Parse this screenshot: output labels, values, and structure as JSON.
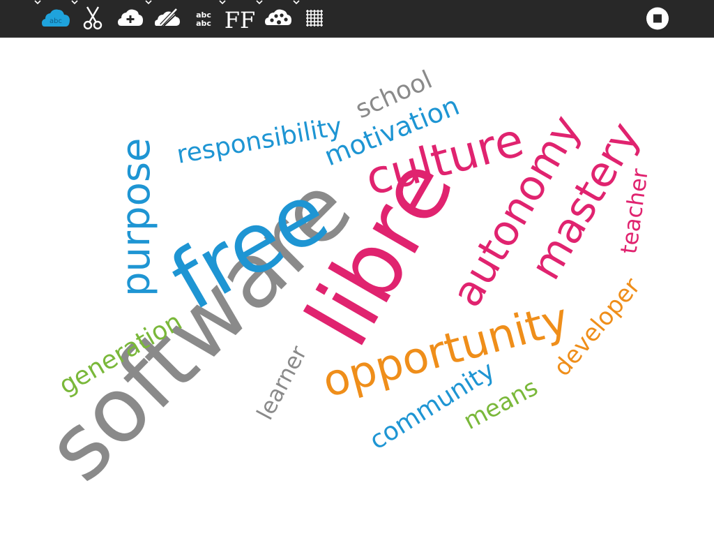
{
  "toolbar": {
    "tools": [
      {
        "name": "wordcloud-cloud-icon",
        "label": "abc",
        "color": "#1fa3dc",
        "active": true,
        "caret": true
      },
      {
        "name": "scissors-icon",
        "caret": true
      },
      {
        "name": "cloud-add-icon",
        "caret": false
      },
      {
        "name": "paint-brush-icon",
        "caret": true
      },
      {
        "name": "font-size-icon",
        "label": "abc\nabc",
        "line1": "abc",
        "line2": "abc",
        "caret": false
      },
      {
        "name": "font-family-icon",
        "label": "FF",
        "caret": true
      },
      {
        "name": "palette-icon",
        "caret": true
      },
      {
        "name": "grid-layout-icon",
        "caret": true
      }
    ],
    "stop_icon": "stop-icon"
  },
  "cloud": {
    "colors": {
      "gray": "#8a8a8a",
      "blue": "#1e95d3",
      "pink": "#e0236f",
      "orange": "#ef8e1a",
      "green": "#7ab83a"
    },
    "words": [
      {
        "text": "software",
        "color": "gray"
      },
      {
        "text": "free",
        "color": "blue"
      },
      {
        "text": "libre",
        "color": "pink"
      },
      {
        "text": "culture",
        "color": "pink"
      },
      {
        "text": "autonomy",
        "color": "pink"
      },
      {
        "text": "mastery",
        "color": "pink"
      },
      {
        "text": "opportunity",
        "color": "orange"
      },
      {
        "text": "purpose",
        "color": "blue"
      },
      {
        "text": "responsibility",
        "color": "blue"
      },
      {
        "text": "school",
        "color": "gray"
      },
      {
        "text": "motivation",
        "color": "blue"
      },
      {
        "text": "teacher",
        "color": "pink"
      },
      {
        "text": "developer",
        "color": "orange"
      },
      {
        "text": "means",
        "color": "green"
      },
      {
        "text": "community",
        "color": "blue"
      },
      {
        "text": "learner",
        "color": "gray"
      },
      {
        "text": "generation",
        "color": "green"
      }
    ]
  }
}
